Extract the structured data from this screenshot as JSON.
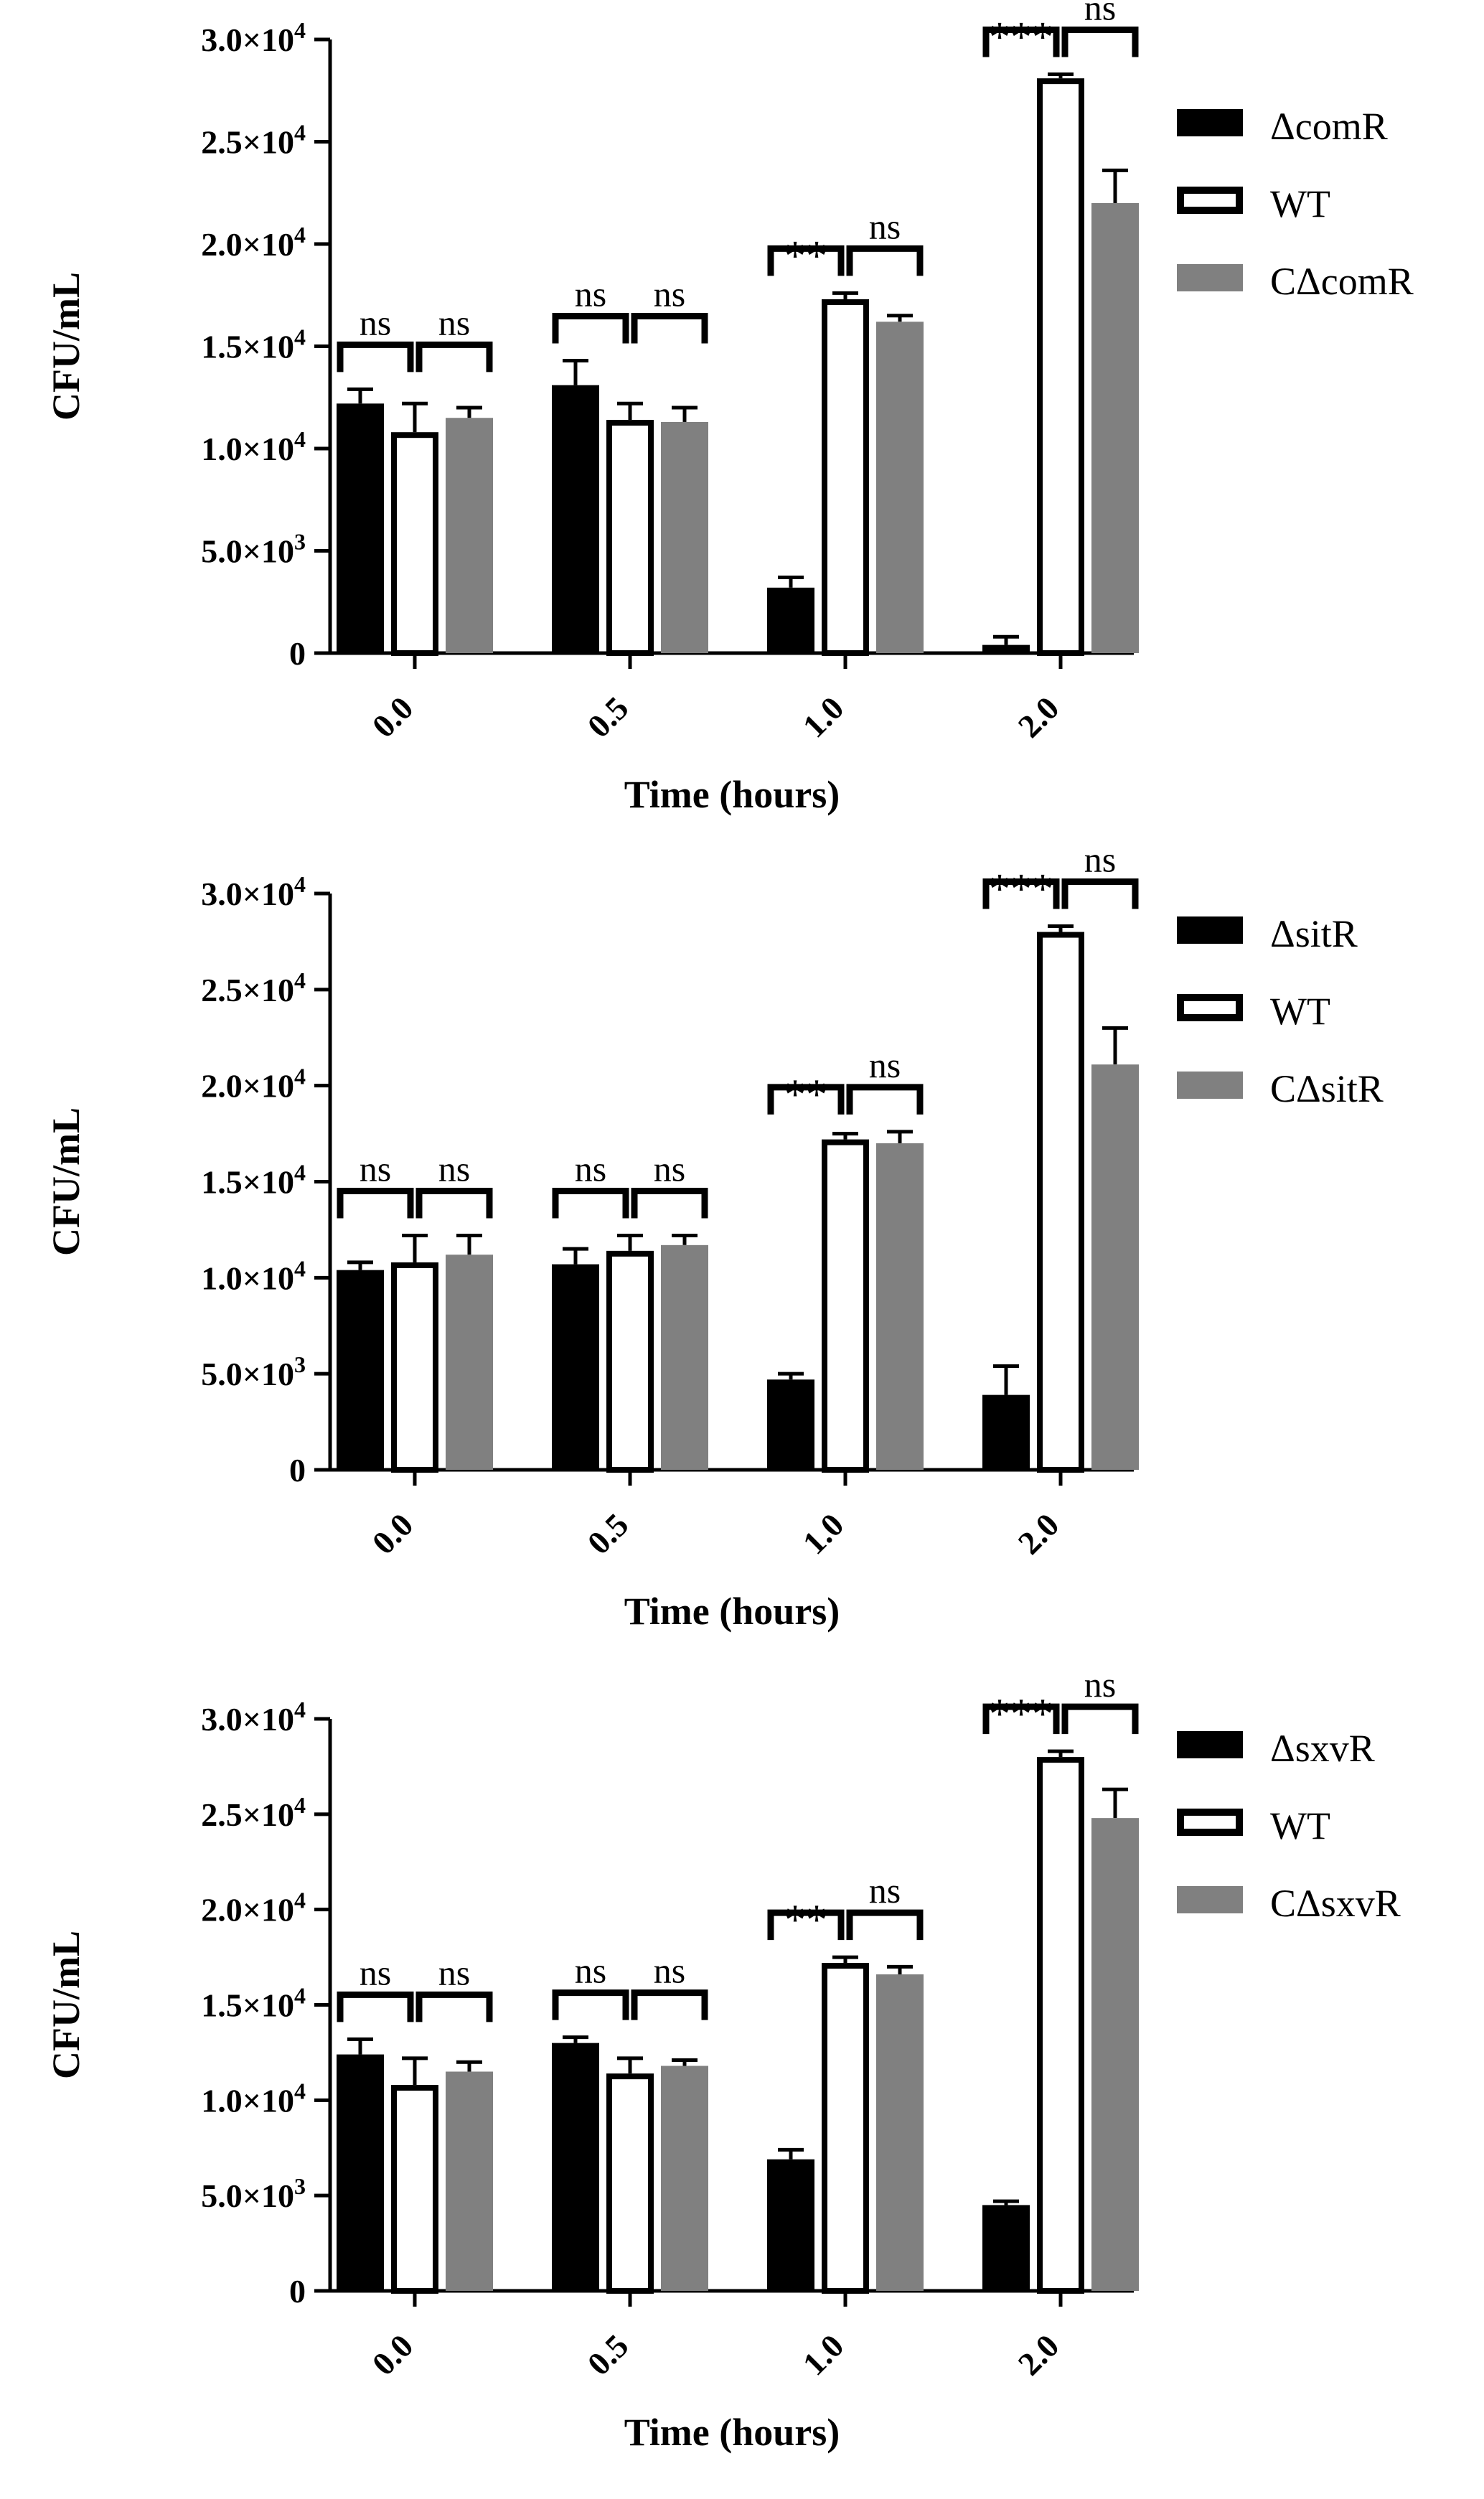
{
  "colors": {
    "mutant": "#000000",
    "wt": "#ffffff",
    "complement": "#808080",
    "axis": "#000000"
  },
  "chart_data": [
    {
      "type": "bar",
      "ylabel": "CFU/mL",
      "xlabel": "Time (hours)",
      "categories": [
        "0.0",
        "0.5",
        "1.0",
        "2.0"
      ],
      "ylim": [
        0,
        30000
      ],
      "yticks": [
        {
          "value": 0,
          "mantissa": "0",
          "exp": ""
        },
        {
          "value": 5000,
          "mantissa": "5.0×10",
          "exp": "3"
        },
        {
          "value": 10000,
          "mantissa": "1.0×10",
          "exp": "4"
        },
        {
          "value": 15000,
          "mantissa": "1.5×10",
          "exp": "4"
        },
        {
          "value": 20000,
          "mantissa": "2.0×10",
          "exp": "4"
        },
        {
          "value": 25000,
          "mantissa": "2.5×10",
          "exp": "4"
        },
        {
          "value": 30000,
          "mantissa": "3.0×10",
          "exp": "4"
        }
      ],
      "series": [
        {
          "name": "ΔcomR",
          "color_key": "mutant",
          "values": [
            12200,
            13100,
            3200,
            400
          ],
          "errors": [
            700,
            1200,
            500,
            400
          ]
        },
        {
          "name": "WT",
          "color_key": "wt",
          "values": [
            10800,
            11400,
            17300,
            28100
          ],
          "errors": [
            1400,
            800,
            300,
            200
          ]
        },
        {
          "name": "CΔcomR",
          "color_key": "complement",
          "values": [
            11500,
            11300,
            16200,
            22000
          ],
          "errors": [
            500,
            700,
            300,
            1600
          ]
        }
      ],
      "significance": [
        [
          "ns",
          "ns"
        ],
        [
          "ns",
          "ns"
        ],
        [
          "**",
          "ns"
        ],
        [
          "***",
          "ns"
        ]
      ]
    },
    {
      "type": "bar",
      "ylabel": "CFU/mL",
      "xlabel": "Time (hours)",
      "categories": [
        "0.0",
        "0.5",
        "1.0",
        "2.0"
      ],
      "ylim": [
        0,
        30000
      ],
      "yticks": [
        {
          "value": 0,
          "mantissa": "0",
          "exp": ""
        },
        {
          "value": 5000,
          "mantissa": "5.0×10",
          "exp": "3"
        },
        {
          "value": 10000,
          "mantissa": "1.0×10",
          "exp": "4"
        },
        {
          "value": 15000,
          "mantissa": "1.5×10",
          "exp": "4"
        },
        {
          "value": 20000,
          "mantissa": "2.0×10",
          "exp": "4"
        },
        {
          "value": 25000,
          "mantissa": "2.5×10",
          "exp": "4"
        },
        {
          "value": 30000,
          "mantissa": "3.0×10",
          "exp": "4"
        }
      ],
      "series": [
        {
          "name": "ΔsitR",
          "color_key": "mutant",
          "values": [
            10400,
            10700,
            4700,
            3900
          ],
          "errors": [
            400,
            800,
            300,
            1500
          ]
        },
        {
          "name": "WT",
          "color_key": "wt",
          "values": [
            10800,
            11400,
            17200,
            28000
          ],
          "errors": [
            1400,
            800,
            300,
            300
          ]
        },
        {
          "name": "CΔsitR",
          "color_key": "complement",
          "values": [
            11200,
            11700,
            17000,
            21100
          ],
          "errors": [
            1000,
            500,
            600,
            1900
          ]
        }
      ],
      "significance": [
        [
          "ns",
          "ns"
        ],
        [
          "ns",
          "ns"
        ],
        [
          "**",
          "ns"
        ],
        [
          "***",
          "ns"
        ]
      ]
    },
    {
      "type": "bar",
      "ylabel": "CFU/mL",
      "xlabel": "Time (hours)",
      "categories": [
        "0.0",
        "0.5",
        "1.0",
        "2.0"
      ],
      "ylim": [
        0,
        30000
      ],
      "yticks": [
        {
          "value": 0,
          "mantissa": "0",
          "exp": ""
        },
        {
          "value": 5000,
          "mantissa": "5.0×10",
          "exp": "3"
        },
        {
          "value": 10000,
          "mantissa": "1.0×10",
          "exp": "4"
        },
        {
          "value": 15000,
          "mantissa": "1.5×10",
          "exp": "4"
        },
        {
          "value": 20000,
          "mantissa": "2.0×10",
          "exp": "4"
        },
        {
          "value": 25000,
          "mantissa": "2.5×10",
          "exp": "4"
        },
        {
          "value": 30000,
          "mantissa": "3.0×10",
          "exp": "4"
        }
      ],
      "series": [
        {
          "name": "ΔsxvR",
          "color_key": "mutant",
          "values": [
            12400,
            13000,
            6900,
            4500
          ],
          "errors": [
            800,
            300,
            500,
            200
          ]
        },
        {
          "name": "WT",
          "color_key": "wt",
          "values": [
            10800,
            11400,
            17200,
            28000
          ],
          "errors": [
            1400,
            800,
            300,
            300
          ]
        },
        {
          "name": "CΔsxvR",
          "color_key": "complement",
          "values": [
            11500,
            11800,
            16600,
            24800
          ],
          "errors": [
            500,
            300,
            400,
            1500
          ]
        }
      ],
      "significance": [
        [
          "ns",
          "ns"
        ],
        [
          "ns",
          "ns"
        ],
        [
          "**",
          "ns"
        ],
        [
          "***",
          "ns"
        ]
      ]
    }
  ]
}
